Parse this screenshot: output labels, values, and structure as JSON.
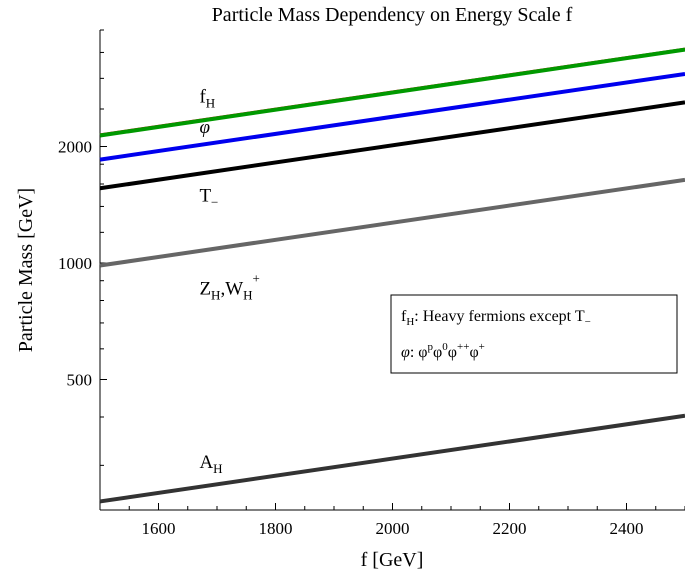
{
  "chart_data": {
    "type": "line",
    "title": "Particle Mass Dependency on Energy Scale f",
    "xlabel": "f  [GeV]",
    "ylabel": "Particle Mass [GeV]",
    "x_scale": "linear",
    "y_scale": "log",
    "xlim": [
      1500,
      2500
    ],
    "ylim": [
      230,
      4000
    ],
    "x_ticks": [
      1600,
      1800,
      2000,
      2200,
      2400
    ],
    "y_ticks": [
      500,
      1000,
      2000
    ],
    "x_tick_labels": [
      "1600",
      "1800",
      "2000",
      "2200",
      "2400"
    ],
    "y_tick_labels": [
      "500",
      "1000",
      "2000"
    ],
    "grid": false,
    "series": [
      {
        "key": "fH_red",
        "name": "",
        "color": "#cc0000",
        "width": 2,
        "x": [
          1500,
          2500
        ],
        "y": [
          2150,
          3580
        ]
      },
      {
        "key": "fH_green",
        "name": "",
        "color": "#009900",
        "width": 4,
        "x": [
          1500,
          2500
        ],
        "y": [
          2135,
          3560
        ]
      },
      {
        "key": "phi",
        "name": "",
        "color": "#0000ee",
        "width": 4,
        "x": [
          1500,
          2500
        ],
        "y": [
          1850,
          3080
        ]
      },
      {
        "key": "Tminus",
        "name": "",
        "color": "#000000",
        "width": 4,
        "x": [
          1500,
          2500
        ],
        "y": [
          1560,
          2600
        ]
      },
      {
        "key": "ZW",
        "name": "",
        "color": "#666666",
        "width": 4,
        "x": [
          1500,
          2500
        ],
        "y": [
          985,
          1640
        ]
      },
      {
        "key": "AH",
        "name": "",
        "color": "#333333",
        "width": 4,
        "x": [
          1500,
          2500
        ],
        "y": [
          242,
          403
        ]
      }
    ],
    "curve_labels": [
      {
        "main": "f",
        "sub": "H",
        "sup": "",
        "main2": "",
        "sub2": "",
        "sup2": "",
        "at_x": 1670,
        "at_y": 2600
      },
      {
        "main": "φ",
        "sub": "",
        "sup": "",
        "main2": "",
        "sub2": "",
        "sup2": "",
        "at_x": 1670,
        "at_y": 2170
      },
      {
        "main": "T",
        "sub": "−",
        "sup": "",
        "main2": "",
        "sub2": "",
        "sup2": "",
        "at_x": 1670,
        "at_y": 1440
      },
      {
        "main": "Z",
        "sub": "H",
        "sup": "",
        "main2": ",W",
        "sub2": "H",
        "sup2": "+",
        "at_x": 1670,
        "at_y": 830
      },
      {
        "main": "A",
        "sub": "H",
        "sup": "",
        "main2": "",
        "sub2": "",
        "sup2": "",
        "at_x": 1670,
        "at_y": 295
      }
    ],
    "legend": {
      "placement": "middle-right",
      "line1": {
        "a": "f",
        "a_sub": "H",
        "b": ": Heavy fermions except T",
        "b_sub": "−"
      },
      "line2": {
        "a": "φ",
        "b": ": φ",
        "b_sup": "p",
        "c": "φ",
        "c_sup": "0",
        "d": "φ",
        "d_sup": "++",
        "e": "φ",
        "e_sup": "+"
      }
    }
  }
}
